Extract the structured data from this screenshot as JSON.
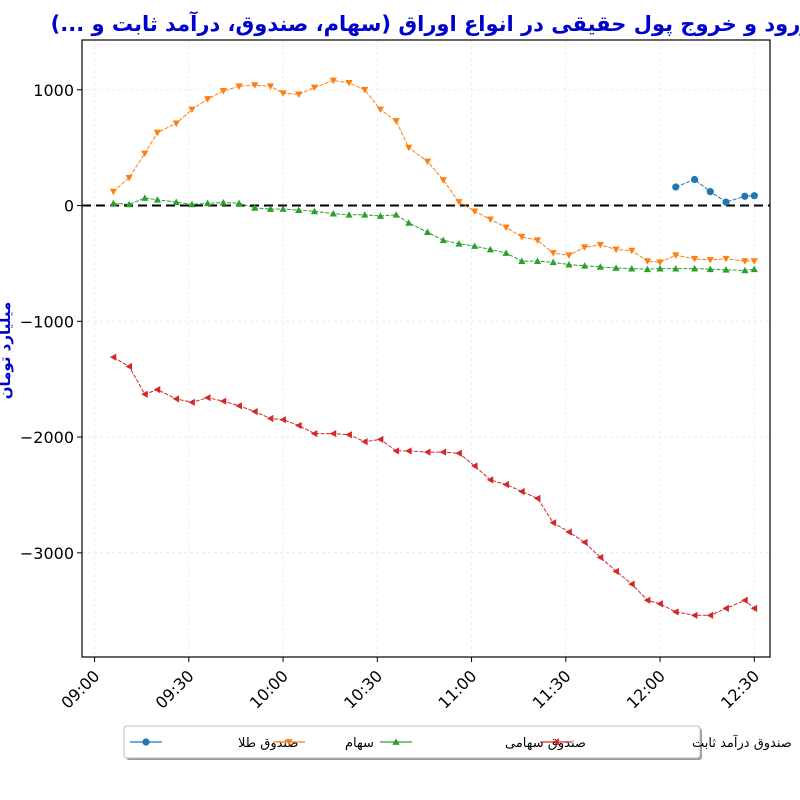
{
  "chart_data": {
    "type": "line",
    "title": "ورود و خروج پول حقیقی در انواع اوراق (سهام، صندوق، درآمد ثابت و ...)",
    "ylabel": "میلیارد تومان",
    "xlabel": "",
    "x_ticks": [
      "09:00",
      "09:30",
      "10:00",
      "10:30",
      "11:00",
      "11:30",
      "12:00",
      "12:30"
    ],
    "y_ticks": [
      1000,
      0,
      -1000,
      -2000,
      -3000
    ],
    "y_tick_labels": [
      "1000",
      "0",
      "−1000",
      "−2000",
      "−3000"
    ],
    "xlim": [
      "08:56",
      "12:35"
    ],
    "ylim": [
      -3900,
      1430
    ],
    "grid": true,
    "zero_line": {
      "y": 0,
      "style": "dashed",
      "color": "#000000"
    },
    "legend_position": "bottom-center",
    "series": [
      {
        "name": "صندوق طلا",
        "color": "#1f77b4",
        "marker": "circle",
        "x": [
          "12:05",
          "12:11",
          "12:16",
          "12:21",
          "12:27",
          "12:30"
        ],
        "y": [
          160,
          225,
          120,
          30,
          80,
          85
        ]
      },
      {
        "name": "سهام",
        "color": "#ff7f0e",
        "marker": "triangle-down",
        "x": [
          "09:06",
          "09:11",
          "09:16",
          "09:20",
          "09:26",
          "09:31",
          "09:36",
          "09:41",
          "09:46",
          "09:51",
          "09:56",
          "10:00",
          "10:05",
          "10:10",
          "10:16",
          "10:21",
          "10:26",
          "10:31",
          "10:36",
          "10:40",
          "10:46",
          "10:51",
          "10:56",
          "11:01",
          "11:06",
          "11:11",
          "11:16",
          "11:21",
          "11:26",
          "11:31",
          "11:36",
          "11:41",
          "11:46",
          "11:51",
          "11:56",
          "12:00",
          "12:05",
          "12:11",
          "12:16",
          "12:21",
          "12:27",
          "12:30"
        ],
        "y": [
          120,
          240,
          450,
          630,
          710,
          830,
          920,
          990,
          1030,
          1040,
          1030,
          970,
          960,
          1020,
          1080,
          1060,
          1000,
          830,
          730,
          500,
          380,
          220,
          30,
          -50,
          -120,
          -190,
          -270,
          -300,
          -410,
          -430,
          -360,
          -340,
          -380,
          -390,
          -480,
          -490,
          -430,
          -460,
          -470,
          -460,
          -480,
          -480
        ]
      },
      {
        "name": "صندوق سهامی",
        "color": "#2ca02c",
        "marker": "triangle-up",
        "x": [
          "09:06",
          "09:11",
          "09:16",
          "09:20",
          "09:26",
          "09:31",
          "09:36",
          "09:41",
          "09:46",
          "09:51",
          "09:56",
          "10:00",
          "10:05",
          "10:10",
          "10:16",
          "10:21",
          "10:26",
          "10:31",
          "10:36",
          "10:40",
          "10:46",
          "10:51",
          "10:56",
          "11:01",
          "11:06",
          "11:11",
          "11:16",
          "11:21",
          "11:26",
          "11:31",
          "11:36",
          "11:41",
          "11:46",
          "11:51",
          "11:56",
          "12:00",
          "12:05",
          "12:11",
          "12:16",
          "12:21",
          "12:27",
          "12:30"
        ],
        "y": [
          20,
          10,
          65,
          50,
          30,
          10,
          20,
          25,
          20,
          -20,
          -30,
          -30,
          -40,
          -50,
          -70,
          -80,
          -80,
          -90,
          -80,
          -150,
          -230,
          -300,
          -330,
          -350,
          -380,
          -410,
          -480,
          -480,
          -490,
          -510,
          -520,
          -530,
          -540,
          -545,
          -550,
          -545,
          -545,
          -545,
          -550,
          -555,
          -560,
          -550
        ]
      },
      {
        "name": "صندوق درآمد ثابت",
        "color": "#d62728",
        "marker": "triangle-left",
        "x": [
          "09:06",
          "09:11",
          "09:16",
          "09:20",
          "09:26",
          "09:31",
          "09:36",
          "09:41",
          "09:46",
          "09:51",
          "09:56",
          "10:00",
          "10:05",
          "10:10",
          "10:16",
          "10:21",
          "10:26",
          "10:31",
          "10:36",
          "10:40",
          "10:46",
          "10:51",
          "10:56",
          "11:01",
          "11:06",
          "11:11",
          "11:16",
          "11:21",
          "11:26",
          "11:31",
          "11:36",
          "11:41",
          "11:46",
          "11:51",
          "11:56",
          "12:00",
          "12:05",
          "12:11",
          "12:16",
          "12:21",
          "12:27",
          "12:30"
        ],
        "y": [
          -1310,
          -1390,
          -1630,
          -1590,
          -1670,
          -1700,
          -1660,
          -1690,
          -1730,
          -1780,
          -1840,
          -1850,
          -1900,
          -1970,
          -1970,
          -1980,
          -2040,
          -2020,
          -2120,
          -2120,
          -2130,
          -2130,
          -2140,
          -2250,
          -2370,
          -2410,
          -2470,
          -2530,
          -2740,
          -2820,
          -2910,
          -3040,
          -3160,
          -3270,
          -3410,
          -3440,
          -3510,
          -3540,
          -3540,
          -3480,
          -3410,
          -3480
        ]
      }
    ]
  }
}
